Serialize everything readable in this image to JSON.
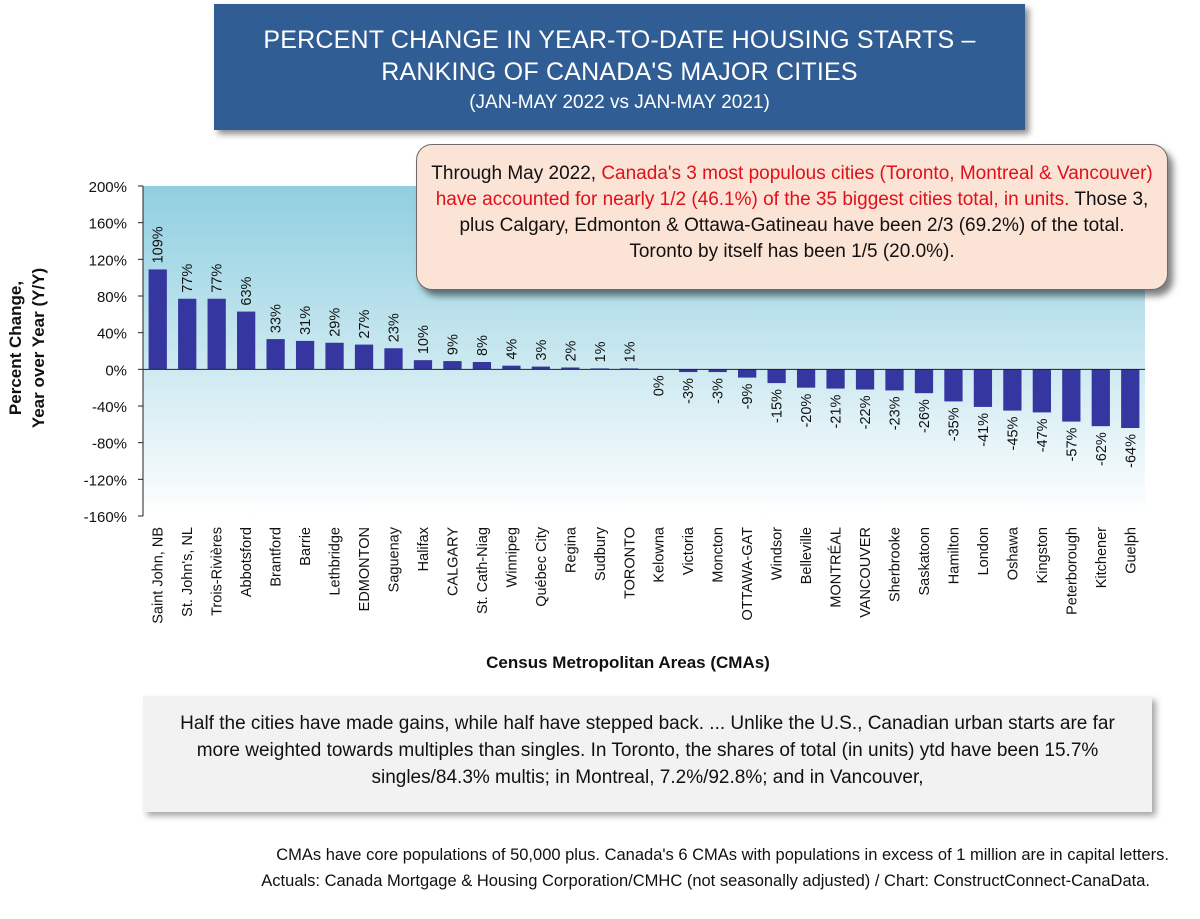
{
  "title": {
    "line1": "PERCENT CHANGE IN YEAR-TO-DATE HOUSING STARTS –",
    "line2": "RANKING OF CANADA'S MAJOR CITIES",
    "line3": "(JAN-MAY 2022 vs JAN-MAY 2021)"
  },
  "callout": {
    "part1": "Through May 2022, ",
    "red": "Canada's 3 most populous cities (Toronto, Montreal & Vancouver) have accounted for nearly 1/2 (46.1%) of the 35 biggest cities total, in units.",
    "part2": " Those 3, plus Calgary, Edmonton & Ottawa-Gatineau have been  2/3 (69.2%) of the total. Toronto by itself has been 1/5 (20.0%)."
  },
  "note": "Half the cities have made gains, while half have stepped back. ... Unlike the U.S., Canadian urban starts are far more weighted towards multiples than singles. In Toronto, the shares of total (in units) ytd have been 15.7% singles/84.3% multis; in Montreal, 7.2%/92.8%; and in Vancouver,",
  "footer": {
    "line1": "CMAs have core populations of 50,000 plus. Canada's 6 CMAs with populations in excess of 1 million are in capital letters.",
    "line2": "Actuals: Canada Mortgage & Housing Corporation/CMHC (not seasonally adjusted) / Chart: ConstructConnect-CanaData."
  },
  "colors": {
    "bar": "#3636a0",
    "title_bg": "#305d93",
    "callout_bg": "#fbe3d6",
    "callout_red": "#e0101a",
    "plot_top": "#90cfe0",
    "plot_bottom": "#ffffff"
  },
  "chart_data": {
    "type": "bar",
    "xlabel": "Census Metropolitan Areas (CMAs)",
    "ylabel_line1": "Percent Change,",
    "ylabel_line2": "Year over Year (Y/Y)",
    "ylim": [
      -160,
      200
    ],
    "yticks": [
      200,
      160,
      120,
      80,
      40,
      0,
      -40,
      -80,
      -120,
      -160
    ],
    "grid": false,
    "categories": [
      "Saint John, NB",
      "St. John's, NL",
      "Trois-Rivières",
      "Abbotsford",
      "Brantford",
      "Barrie",
      "Lethbridge",
      "EDMONTON",
      "Saguenay",
      "Halifax",
      "CALGARY",
      "St. Cath-Niag",
      "Winnipeg",
      "Québec City",
      "Regina",
      "Sudbury",
      "TORONTO",
      "Kelowna",
      "Victoria",
      "Moncton",
      "OTTAWA-GAT",
      "Windsor",
      "Belleville",
      "MONTRÉAL",
      "VANCOUVER",
      "Sherbrooke",
      "Saskatoon",
      "Hamilton",
      "London",
      "Oshawa",
      "Kingston",
      "Peterborough",
      "Kitchener",
      "Guelph"
    ],
    "values": [
      109,
      77,
      77,
      63,
      33,
      31,
      29,
      27,
      23,
      10,
      9,
      8,
      4,
      3,
      2,
      1,
      1,
      0,
      -3,
      -3,
      -9,
      -15,
      -20,
      -21,
      -22,
      -23,
      -26,
      -35,
      -41,
      -45,
      -47,
      -57,
      -62,
      -64
    ],
    "data_labels": [
      "109%",
      "77%",
      "77%",
      "63%",
      "33%",
      "31%",
      "29%",
      "27%",
      "23%",
      "10%",
      "9%",
      "8%",
      "4%",
      "3%",
      "2%",
      "1%",
      "1%",
      "0%",
      "-3%",
      "-3%",
      "-9%",
      "-15%",
      "-20%",
      "-21%",
      "-22%",
      "-23%",
      "-26%",
      "-35%",
      "-41%",
      "-45%",
      "-47%",
      "-57%",
      "-62%",
      "-64%"
    ]
  }
}
